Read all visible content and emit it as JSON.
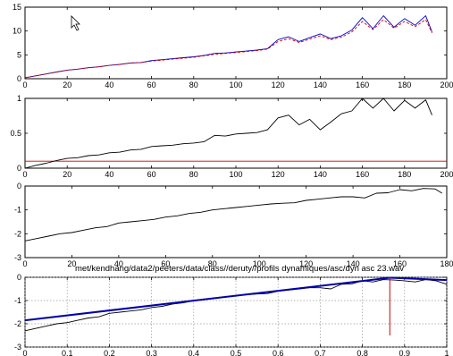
{
  "figure": {
    "title": "met/kendhang/data2/peeters/data/class//deruty//profils dynamiques/asc/dyn asc 23.wav"
  },
  "chart_data": [
    {
      "type": "line",
      "xlim": [
        0,
        200
      ],
      "ylim": [
        0,
        15
      ],
      "xticks": [
        0,
        20,
        40,
        60,
        80,
        100,
        120,
        140,
        160,
        180,
        200
      ],
      "xtick_labels": [
        "0",
        "20",
        "40",
        "60",
        "80",
        "100",
        "120",
        "140",
        "160",
        "180",
        "200"
      ],
      "yticks": [
        0,
        5,
        10,
        15
      ],
      "ytick_labels": [
        "0",
        "5",
        "10",
        "15"
      ],
      "grid": false,
      "series": [
        {
          "color": "#0000cc",
          "style": "solid",
          "x": [
            0,
            5,
            10,
            15,
            20,
            25,
            30,
            35,
            40,
            45,
            50,
            55,
            60,
            65,
            70,
            75,
            80,
            85,
            90,
            95,
            100,
            105,
            110,
            115,
            120,
            125,
            130,
            135,
            140,
            145,
            150,
            155,
            160,
            165,
            170,
            175,
            180,
            185,
            190,
            193
          ],
          "y": [
            0.2,
            0.6,
            1.0,
            1.4,
            1.8,
            2.0,
            2.3,
            2.5,
            2.8,
            3.0,
            3.3,
            3.4,
            3.8,
            4.0,
            4.2,
            4.4,
            4.6,
            4.9,
            5.3,
            5.4,
            5.6,
            5.8,
            6.0,
            6.3,
            8.2,
            8.8,
            7.8,
            8.6,
            9.4,
            8.4,
            9.0,
            10.2,
            12.8,
            10.5,
            13.2,
            10.8,
            12.6,
            11.2,
            13.2,
            9.8
          ]
        },
        {
          "color": "#cc0000",
          "style": "dashed",
          "x": [
            0,
            5,
            10,
            15,
            20,
            25,
            30,
            35,
            40,
            45,
            50,
            55,
            60,
            65,
            70,
            75,
            80,
            85,
            90,
            95,
            100,
            105,
            110,
            115,
            120,
            125,
            130,
            135,
            140,
            145,
            150,
            155,
            160,
            165,
            170,
            175,
            180,
            185,
            190,
            193
          ],
          "y": [
            0.2,
            0.6,
            1.0,
            1.4,
            1.8,
            2.0,
            2.3,
            2.5,
            2.8,
            3.0,
            3.3,
            3.4,
            3.7,
            3.9,
            4.1,
            4.3,
            4.5,
            4.8,
            5.1,
            5.3,
            5.5,
            5.7,
            5.9,
            6.2,
            7.8,
            8.4,
            7.6,
            8.3,
            9.0,
            8.2,
            8.7,
            9.8,
            12.0,
            10.3,
            12.4,
            10.6,
            12.0,
            10.9,
            12.4,
            9.6
          ]
        }
      ],
      "cursor_icon": "mouse-pointer-icon"
    },
    {
      "type": "line",
      "xlim": [
        0,
        200
      ],
      "ylim": [
        0,
        1
      ],
      "xticks": [
        0,
        20,
        40,
        60,
        80,
        100,
        120,
        140,
        160,
        180,
        200
      ],
      "xtick_labels": [
        "0",
        "20",
        "40",
        "60",
        "80",
        "100",
        "120",
        "140",
        "160",
        "180",
        "200"
      ],
      "yticks": [
        0,
        0.5,
        1
      ],
      "ytick_labels": [
        "0",
        "0.5",
        "1"
      ],
      "grid": false,
      "hline": {
        "y": 0.1,
        "color": "#cc0000"
      },
      "series": [
        {
          "color": "#000000",
          "style": "solid",
          "x": [
            0,
            5,
            10,
            15,
            20,
            25,
            30,
            35,
            40,
            45,
            50,
            55,
            60,
            65,
            70,
            75,
            80,
            85,
            90,
            95,
            100,
            105,
            110,
            115,
            120,
            125,
            130,
            135,
            140,
            145,
            150,
            155,
            160,
            165,
            170,
            175,
            180,
            185,
            190,
            193
          ],
          "y": [
            0.0,
            0.04,
            0.07,
            0.11,
            0.14,
            0.15,
            0.18,
            0.19,
            0.22,
            0.23,
            0.26,
            0.27,
            0.31,
            0.32,
            0.33,
            0.35,
            0.36,
            0.38,
            0.47,
            0.46,
            0.49,
            0.5,
            0.51,
            0.55,
            0.72,
            0.76,
            0.62,
            0.7,
            0.55,
            0.66,
            0.78,
            0.82,
            1.0,
            0.86,
            1.0,
            0.82,
            0.97,
            0.86,
            0.98,
            0.76
          ]
        }
      ]
    },
    {
      "type": "line",
      "xlim": [
        0,
        180
      ],
      "ylim": [
        -3,
        0
      ],
      "xticks": [
        0,
        20,
        40,
        60,
        80,
        100,
        120,
        140,
        160,
        180
      ],
      "xtick_labels": [
        "0",
        "20",
        "40",
        "60",
        "80",
        "100",
        "120",
        "140",
        "160",
        "180"
      ],
      "yticks": [
        -3,
        -2,
        -1,
        0
      ],
      "ytick_labels": [
        "-3",
        "-2",
        "-1",
        "0"
      ],
      "grid": false,
      "series": [
        {
          "color": "#000000",
          "style": "solid",
          "x": [
            0,
            5,
            10,
            15,
            20,
            25,
            30,
            35,
            40,
            45,
            50,
            55,
            60,
            65,
            70,
            75,
            80,
            85,
            90,
            95,
            100,
            105,
            110,
            115,
            120,
            125,
            130,
            135,
            140,
            145,
            150,
            155,
            160,
            165,
            170,
            175,
            178
          ],
          "y": [
            -2.3,
            -2.2,
            -2.1,
            -2.0,
            -1.95,
            -1.85,
            -1.75,
            -1.7,
            -1.55,
            -1.5,
            -1.45,
            -1.4,
            -1.3,
            -1.25,
            -1.15,
            -1.1,
            -1.0,
            -0.95,
            -0.9,
            -0.85,
            -0.8,
            -0.75,
            -0.72,
            -0.7,
            -0.6,
            -0.55,
            -0.5,
            -0.45,
            -0.45,
            -0.5,
            -0.3,
            -0.28,
            -0.15,
            -0.2,
            -0.1,
            -0.12,
            -0.3
          ]
        }
      ]
    },
    {
      "type": "line",
      "xlim": [
        0,
        1
      ],
      "ylim": [
        -3,
        0
      ],
      "xticks": [
        0,
        0.1,
        0.2,
        0.3,
        0.4,
        0.5,
        0.6,
        0.7,
        0.8,
        0.9,
        1
      ],
      "xtick_labels": [
        "0",
        "0.1",
        "0.2",
        "0.3",
        "0.4",
        "0.5",
        "0.6",
        "0.7",
        "0.8",
        "0.9",
        "1"
      ],
      "yticks": [
        -3,
        -2,
        -1,
        0
      ],
      "ytick_labels": [
        "-3",
        "-2",
        "-1",
        "0"
      ],
      "grid": true,
      "vline": {
        "x": 0.865,
        "y0": -2.5,
        "y1": 0,
        "color": "#cc0000"
      },
      "series": [
        {
          "color": "#000000",
          "style": "solid",
          "x": [
            0,
            0.025,
            0.05,
            0.075,
            0.1,
            0.125,
            0.15,
            0.175,
            0.2,
            0.225,
            0.25,
            0.275,
            0.3,
            0.325,
            0.35,
            0.375,
            0.4,
            0.425,
            0.45,
            0.475,
            0.5,
            0.525,
            0.55,
            0.575,
            0.6,
            0.625,
            0.65,
            0.675,
            0.7,
            0.725,
            0.75,
            0.775,
            0.8,
            0.825,
            0.85,
            0.875,
            0.9,
            0.925,
            0.95,
            0.975,
            1.0
          ],
          "y": [
            -2.3,
            -2.2,
            -2.1,
            -2.0,
            -1.95,
            -1.85,
            -1.75,
            -1.7,
            -1.55,
            -1.5,
            -1.45,
            -1.4,
            -1.3,
            -1.25,
            -1.15,
            -1.1,
            -1.0,
            -0.95,
            -0.9,
            -0.85,
            -0.8,
            -0.75,
            -0.72,
            -0.7,
            -0.6,
            -0.55,
            -0.5,
            -0.45,
            -0.45,
            -0.5,
            -0.3,
            -0.28,
            -0.15,
            -0.2,
            -0.1,
            -0.12,
            -0.15,
            -0.2,
            -0.1,
            -0.15,
            -0.3
          ]
        },
        {
          "color": "#0000aa",
          "style": "thick",
          "x": [
            0,
            0.865,
            1.0
          ],
          "y": [
            -1.85,
            -0.02,
            -0.12
          ]
        }
      ]
    }
  ]
}
